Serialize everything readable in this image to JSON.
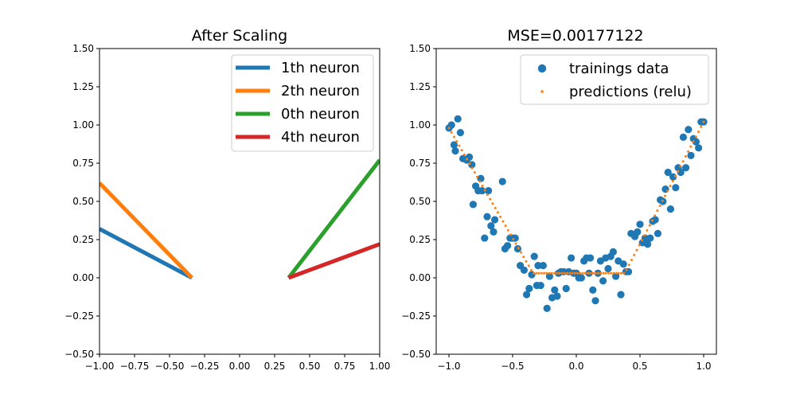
{
  "chart_data": [
    {
      "type": "line",
      "title": "After Scaling",
      "xlabel": "",
      "ylabel": "",
      "xlim": [
        -1.0,
        1.0
      ],
      "ylim": [
        -0.5,
        1.5
      ],
      "xticks": [
        -1.0,
        -0.75,
        -0.5,
        -0.25,
        0.0,
        0.25,
        0.5,
        0.75,
        1.0
      ],
      "xtick_labels": [
        "−1.00",
        "−0.75",
        "−0.50",
        "−0.25",
        "0.00",
        "0.25",
        "0.50",
        "0.75",
        "1.00"
      ],
      "yticks": [
        -0.5,
        -0.25,
        0.0,
        0.25,
        0.5,
        0.75,
        1.0,
        1.25,
        1.5
      ],
      "ytick_labels": [
        "−0.50",
        "−0.25",
        "0.00",
        "0.25",
        "0.50",
        "0.75",
        "1.00",
        "1.25",
        "1.50"
      ],
      "grid": false,
      "legend_position": "top-right",
      "series": [
        {
          "name": "1th neuron",
          "color": "#1f77b4",
          "x": [
            -1.0,
            -0.34
          ],
          "y": [
            0.32,
            0.0
          ]
        },
        {
          "name": "2th neuron",
          "color": "#ff7f0e",
          "x": [
            -1.0,
            -0.34
          ],
          "y": [
            0.62,
            0.0
          ]
        },
        {
          "name": "0th neuron",
          "color": "#2ca02c",
          "x": [
            0.35,
            1.0
          ],
          "y": [
            0.0,
            0.77
          ]
        },
        {
          "name": "4th neuron",
          "color": "#d62728",
          "x": [
            0.35,
            1.0
          ],
          "y": [
            0.0,
            0.22
          ]
        }
      ]
    },
    {
      "type": "scatter",
      "title": "MSE=0.00177122",
      "xlabel": "",
      "ylabel": "",
      "xlim": [
        -1.1,
        1.1
      ],
      "ylim": [
        -0.5,
        1.5
      ],
      "xticks": [
        -1.0,
        -0.5,
        0.0,
        0.5,
        1.0
      ],
      "xtick_labels": [
        "−1.0",
        "−0.5",
        "0.0",
        "0.5",
        "1.0"
      ],
      "yticks": [
        -0.5,
        -0.25,
        0.0,
        0.25,
        0.5,
        0.75,
        1.0,
        1.25,
        1.5
      ],
      "ytick_labels": [
        "−0.50",
        "−0.25",
        "0.00",
        "0.25",
        "0.50",
        "0.75",
        "1.00",
        "1.25",
        "1.50"
      ],
      "grid": false,
      "legend_position": "top-right",
      "series": [
        {
          "name": "trainings data",
          "color": "#1f77b4",
          "marker": "circle",
          "points": [
            [
              -1.0,
              0.98
            ],
            [
              -0.98,
              1.0
            ],
            [
              -0.96,
              0.87
            ],
            [
              -0.95,
              0.83
            ],
            [
              -0.93,
              1.04
            ],
            [
              -0.91,
              0.95
            ],
            [
              -0.89,
              0.78
            ],
            [
              -0.86,
              0.77
            ],
            [
              -0.84,
              0.79
            ],
            [
              -0.82,
              0.74
            ],
            [
              -0.81,
              0.48
            ],
            [
              -0.79,
              0.6
            ],
            [
              -0.77,
              0.57
            ],
            [
              -0.75,
              0.65
            ],
            [
              -0.74,
              0.57
            ],
            [
              -0.72,
              0.26
            ],
            [
              -0.7,
              0.4
            ],
            [
              -0.69,
              0.57
            ],
            [
              -0.67,
              0.34
            ],
            [
              -0.65,
              0.3
            ],
            [
              -0.64,
              0.38
            ],
            [
              -0.58,
              0.63
            ],
            [
              -0.56,
              0.19
            ],
            [
              -0.54,
              0.21
            ],
            [
              -0.52,
              0.26
            ],
            [
              -0.5,
              0.26
            ],
            [
              -0.48,
              0.26
            ],
            [
              -0.46,
              0.19
            ],
            [
              -0.44,
              0.08
            ],
            [
              -0.41,
              0.05
            ],
            [
              -0.39,
              -0.11
            ],
            [
              -0.37,
              -0.07
            ],
            [
              -0.35,
              0.02
            ],
            [
              -0.33,
              0.14
            ],
            [
              -0.31,
              -0.05
            ],
            [
              -0.3,
              0.08
            ],
            [
              -0.28,
              -0.05
            ],
            [
              -0.26,
              0.08
            ],
            [
              -0.23,
              -0.2
            ],
            [
              -0.21,
              0.01
            ],
            [
              -0.19,
              -0.13
            ],
            [
              -0.17,
              -0.08
            ],
            [
              -0.15,
              -0.12
            ],
            [
              -0.14,
              0.03
            ],
            [
              -0.12,
              0.04
            ],
            [
              -0.1,
              0.04
            ],
            [
              -0.08,
              -0.07
            ],
            [
              -0.06,
              0.04
            ],
            [
              -0.04,
              0.13
            ],
            [
              -0.02,
              0.03
            ],
            [
              0.0,
              0.03
            ],
            [
              0.02,
              0.0
            ],
            [
              0.04,
              0.0
            ],
            [
              0.06,
              0.11
            ],
            [
              0.08,
              0.13
            ],
            [
              0.1,
              0.03
            ],
            [
              0.11,
              0.13
            ],
            [
              0.13,
              -0.08
            ],
            [
              0.15,
              -0.15
            ],
            [
              0.17,
              0.03
            ],
            [
              0.19,
              0.11
            ],
            [
              0.21,
              -0.02
            ],
            [
              0.23,
              0.13
            ],
            [
              0.25,
              0.06
            ],
            [
              0.27,
              0.14
            ],
            [
              0.29,
              0.17
            ],
            [
              0.31,
              0.01
            ],
            [
              0.33,
              0.11
            ],
            [
              0.35,
              -0.11
            ],
            [
              0.37,
              0.09
            ],
            [
              0.39,
              0.04
            ],
            [
              0.41,
              0.04
            ],
            [
              0.43,
              0.29
            ],
            [
              0.46,
              0.27
            ],
            [
              0.48,
              0.3
            ],
            [
              0.5,
              0.35
            ],
            [
              0.52,
              0.23
            ],
            [
              0.54,
              0.26
            ],
            [
              0.56,
              0.22
            ],
            [
              0.58,
              0.26
            ],
            [
              0.6,
              0.37
            ],
            [
              0.62,
              0.38
            ],
            [
              0.64,
              0.29
            ],
            [
              0.66,
              0.51
            ],
            [
              0.68,
              0.5
            ],
            [
              0.7,
              0.58
            ],
            [
              0.72,
              0.69
            ],
            [
              0.74,
              0.45
            ],
            [
              0.76,
              0.66
            ],
            [
              0.78,
              0.59
            ],
            [
              0.8,
              0.72
            ],
            [
              0.82,
              0.69
            ],
            [
              0.84,
              0.92
            ],
            [
              0.86,
              0.72
            ],
            [
              0.88,
              0.97
            ],
            [
              0.9,
              0.8
            ],
            [
              0.92,
              0.91
            ],
            [
              0.94,
              0.89
            ],
            [
              0.96,
              0.85
            ],
            [
              0.98,
              1.02
            ],
            [
              1.0,
              1.02
            ]
          ]
        },
        {
          "name": "predictions (relu)",
          "color": "#ff7f0e",
          "marker": "point",
          "knots": [
            [
              -1.0,
              0.98
            ],
            [
              -0.34,
              0.03
            ],
            [
              0.38,
              0.03
            ],
            [
              1.0,
              1.02
            ]
          ]
        }
      ]
    }
  ]
}
